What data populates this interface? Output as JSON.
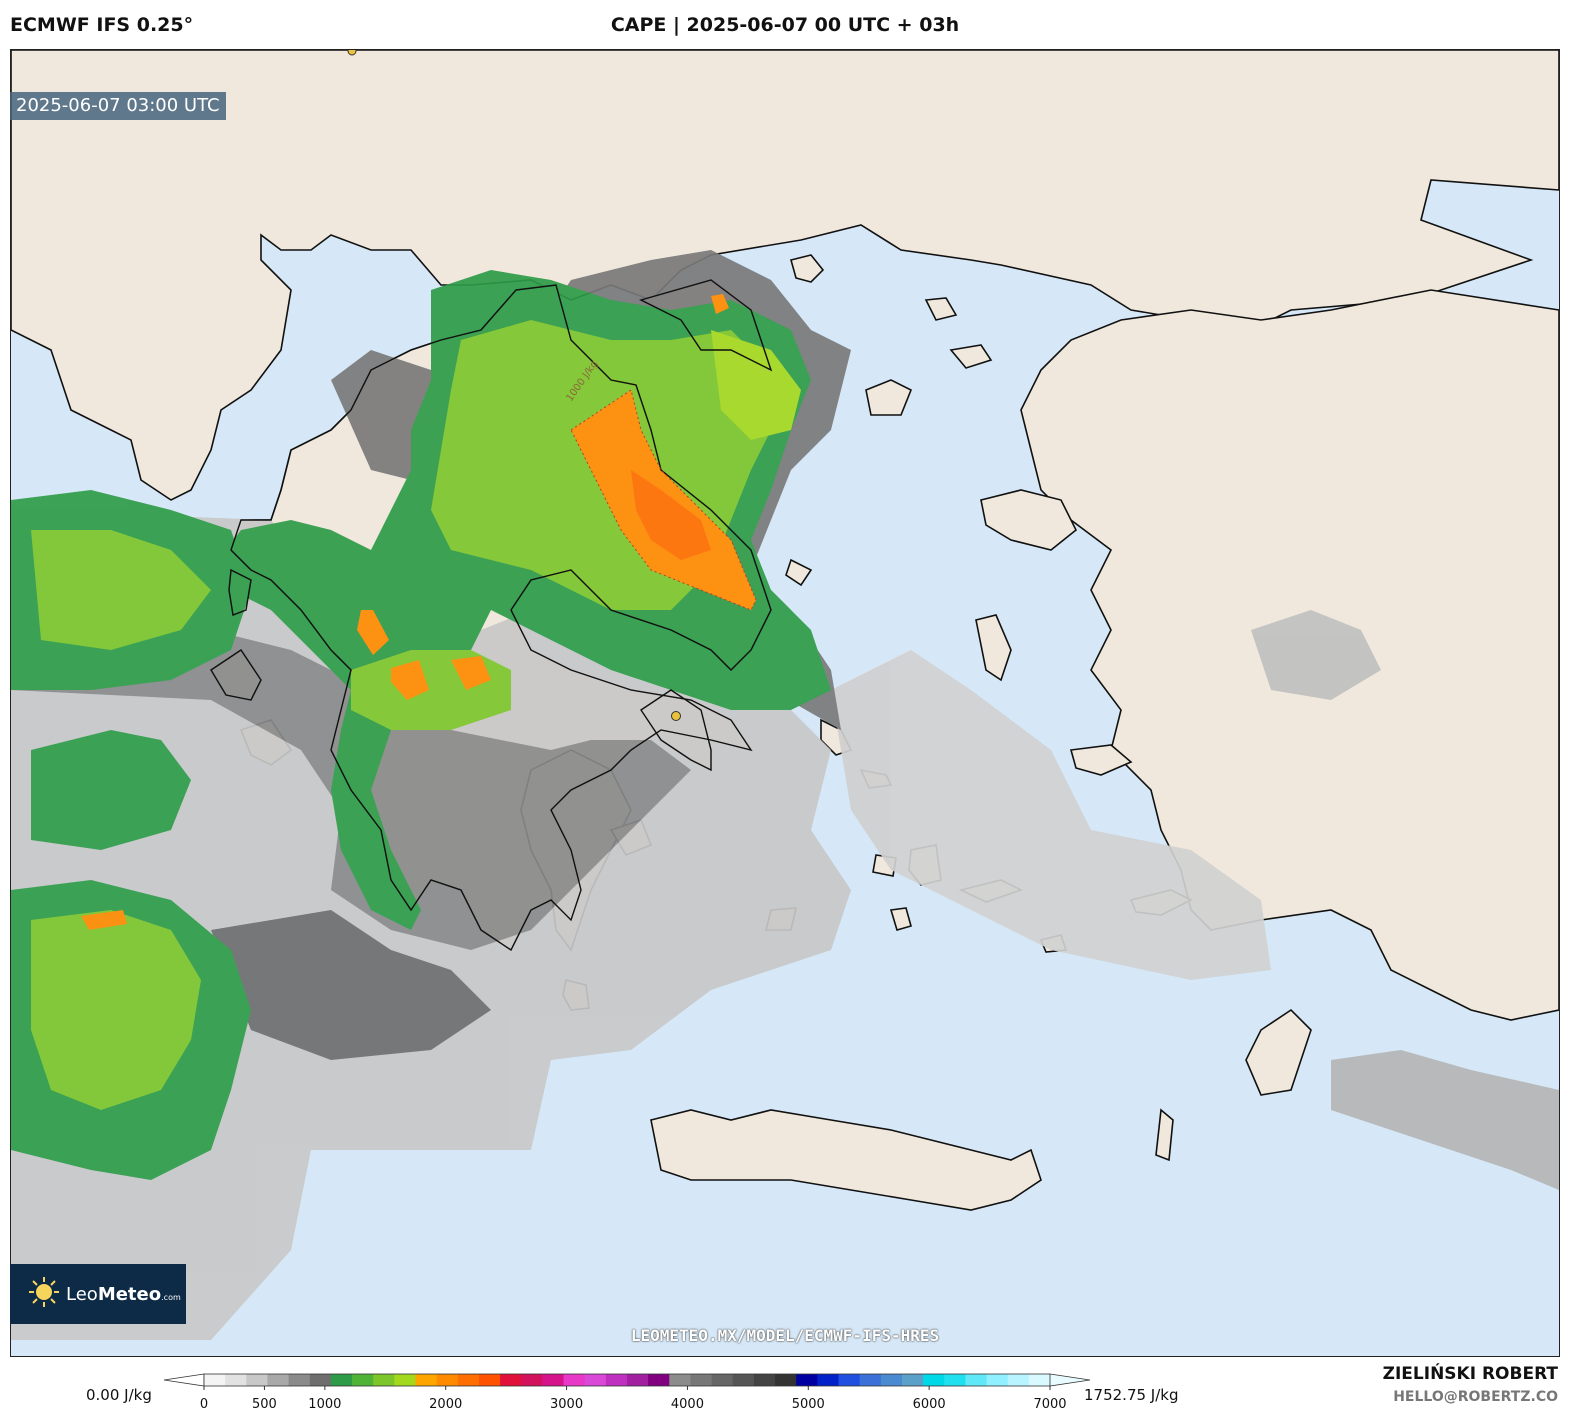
{
  "header": {
    "model": "ECMWF IFS 0.25°",
    "title": "CAPE | 2025-06-07 00 UTC + 03h"
  },
  "map": {
    "valid_time": "2025-06-07 03:00 UTC",
    "contour_label": "1000 J/kg",
    "watermark": "LEOMETEO.MX/MODEL/ECMWF-IFS-HRES",
    "colors": {
      "sea": "#d6e8f7",
      "land": "#f0e8dc",
      "coast": "#111111",
      "city_marker": "#e8c23a"
    }
  },
  "logo": {
    "name_light": "Leo",
    "name_bold": "Meteo",
    "domain": ".com",
    "icon": "sun-icon"
  },
  "legend": {
    "unit_min_label": "0.00 J/kg",
    "unit_max_label": "1752.75 J/kg",
    "ticks": [
      "0",
      "500",
      "1000",
      "2000",
      "3000",
      "4000",
      "5000",
      "6000",
      "7000"
    ],
    "tick_values": [
      0,
      500,
      1000,
      2000,
      3000,
      4000,
      5000,
      6000,
      7000
    ],
    "range": [
      0,
      7000
    ],
    "colors": [
      "#f4f4f4",
      "#e2e2e2",
      "#c8c8c8",
      "#a8a8a8",
      "#8a8a8a",
      "#6e6e6e",
      "#2e9b48",
      "#4fb338",
      "#7cc62c",
      "#a4d81e",
      "#ffa500",
      "#ff8a00",
      "#ff6e00",
      "#ff5200",
      "#e0103a",
      "#d2125c",
      "#d5138a",
      "#e838c8",
      "#da48d8",
      "#c030c0",
      "#a020a0",
      "#800080",
      "#8c8c8c",
      "#777777",
      "#666666",
      "#555555",
      "#444444",
      "#333333",
      "#0000a0",
      "#0022c8",
      "#2050e0",
      "#3a70d8",
      "#4a8ad0",
      "#5aa0c8",
      "#00d8e8",
      "#20e0f0",
      "#60e8f8",
      "#90f0ff",
      "#b8f4ff",
      "#d8faff"
    ]
  },
  "footer": {
    "author": "ZIELIŃSKI ROBERT",
    "contact": "HELLO@ROBERTZ.CO"
  }
}
